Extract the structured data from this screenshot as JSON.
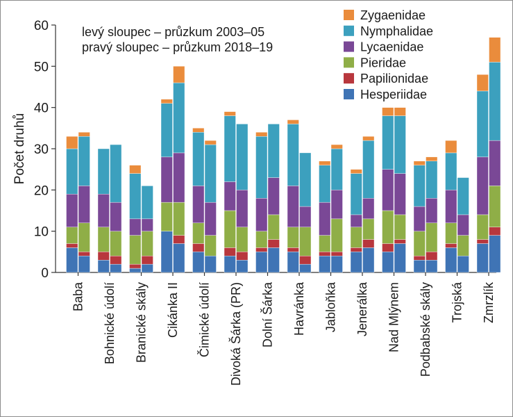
{
  "chart_data": {
    "type": "bar",
    "stacked": true,
    "ylabel": "Počet druhů",
    "ylim": [
      0,
      60
    ],
    "yticks": [
      0,
      10,
      20,
      30,
      40,
      50,
      60
    ],
    "notes": [
      "levý sloupec – průzkum 2003–05",
      "pravý sloupec – průzkum 2018–19"
    ],
    "legend_position": "top-right",
    "categories": [
      "Baba",
      "Bohnické údolí",
      "Branické skály",
      "Cikánka II",
      "Čimické údolí",
      "Divoká Šárka (PR)",
      "Dolní Šárka",
      "Havránka",
      "Jabloňka",
      "Jenerálka",
      "Nad Mlýnem",
      "Podbabské skály",
      "Trojská",
      "Zmrzlík"
    ],
    "bars_per_category": [
      "2003–05",
      "2018–19"
    ],
    "series": [
      {
        "name": "Hesperiidae",
        "color": "#3f74b5",
        "values_2003_05": [
          6,
          3,
          1,
          10,
          5,
          4,
          5,
          5,
          4,
          5,
          5,
          3,
          6,
          7
        ],
        "values_2018_19": [
          4,
          2,
          2,
          7,
          4,
          3,
          6,
          2,
          4,
          6,
          7,
          3,
          4,
          9
        ]
      },
      {
        "name": "Papilionidae",
        "color": "#b8373d",
        "values_2003_05": [
          1,
          2,
          1,
          0,
          2,
          2,
          1,
          1,
          1,
          1,
          2,
          1,
          1,
          1
        ],
        "values_2018_19": [
          1,
          2,
          2,
          2,
          0,
          2,
          2,
          2,
          1,
          2,
          1,
          2,
          0,
          2
        ]
      },
      {
        "name": "Pieridae",
        "color": "#8fae47",
        "values_2003_05": [
          4,
          6,
          7,
          7,
          5,
          9,
          4,
          5,
          4,
          5,
          8,
          6,
          5,
          6
        ],
        "values_2018_19": [
          7,
          6,
          6,
          8,
          5,
          6,
          6,
          7,
          8,
          5,
          6,
          7,
          5,
          10
        ]
      },
      {
        "name": "Lycaenidae",
        "color": "#7a4896",
        "values_2003_05": [
          8,
          8,
          4,
          11,
          9,
          7,
          8,
          10,
          8,
          3,
          10,
          6,
          8,
          14
        ],
        "values_2018_19": [
          9,
          7,
          3,
          12,
          8,
          9,
          9,
          5,
          7,
          5,
          10,
          6,
          5,
          11
        ]
      },
      {
        "name": "Nymphalidae",
        "color": "#3ca0be",
        "values_2003_05": [
          11,
          11,
          11,
          13,
          13,
          16,
          15,
          15,
          9,
          10,
          13,
          10,
          9,
          16
        ],
        "values_2018_19": [
          12,
          14,
          8,
          17,
          14,
          16,
          13,
          13,
          10,
          14,
          14,
          9,
          9,
          19
        ]
      },
      {
        "name": "Zygaenidae",
        "color": "#ea8c3c",
        "values_2003_05": [
          3,
          0,
          2,
          1,
          1,
          1,
          1,
          1,
          1,
          1,
          2,
          1,
          3,
          4
        ],
        "values_2018_19": [
          1,
          0,
          0,
          4,
          1,
          0,
          0,
          0,
          1,
          1,
          2,
          1,
          0,
          6
        ]
      }
    ]
  }
}
